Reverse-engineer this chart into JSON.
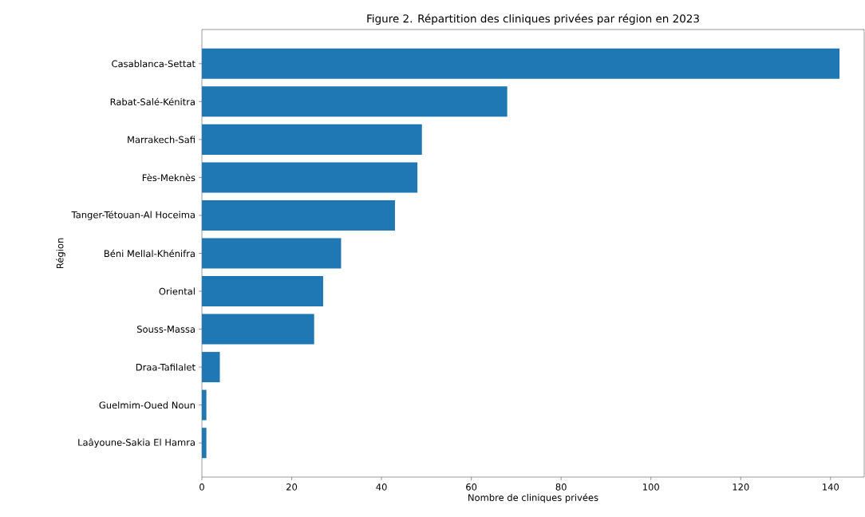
{
  "chart_data": {
    "type": "bar",
    "orientation": "horizontal",
    "title": "Figure 2. Répartition des cliniques privées par région en 2023",
    "xlabel": "Nombre de cliniques privées",
    "ylabel": "Région",
    "categories": [
      "Casablanca-Settat",
      "Rabat-Salé-Kénitra",
      "Marrakech-Safi",
      "Fès-Meknès",
      "Tanger-Tétouan-Al Hoceima",
      "Béni Mellal-Khénifra",
      "Oriental",
      "Souss-Massa",
      "Draa-Tafilalet",
      "Guelmim-Oued Noun",
      "Laâyoune-Sakia El Hamra"
    ],
    "values": [
      142,
      68,
      49,
      48,
      43,
      31,
      27,
      25,
      4,
      1,
      1
    ],
    "color": "#1f77b4",
    "xlim": [
      0,
      147.5
    ],
    "xticks": [
      0,
      20,
      40,
      60,
      80,
      100,
      120,
      140
    ]
  }
}
